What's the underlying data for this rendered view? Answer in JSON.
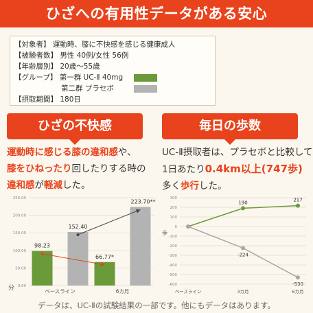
{
  "header": {
    "title": "ひざへの有用性データがある安心"
  },
  "info": {
    "subjects_label": "【対象者】",
    "subjects_value": "運動時、膝に不快感を感じる健康成人",
    "count_label": "【被験者数】",
    "count_value": "男性 40例/女性 56例",
    "age_label": "【年齢層別】",
    "age_value": "20歳～55歳",
    "group_label": "【グループ】",
    "group1": "第一群 UC-Ⅱ 40mg",
    "group2": "第二群 プラセボ",
    "period_label": "【摂取期間】",
    "period_value": "180日",
    "group1_color": "#6a9a3a",
    "group2_color": "#b3b3b3"
  },
  "left": {
    "badge": "ひざの不快感",
    "p1a": "運動時に感じる膝の違和感",
    "p1b": "や、",
    "p2a": "膝をひねったり",
    "p2b": "回したりする時の",
    "p3a": "違和感",
    "p3b": "が",
    "p3c": "軽減",
    "p3d": "した。"
  },
  "right": {
    "badge": "毎日の歩数",
    "p1": "UC-Ⅱ摂取者は、プラセボと比較して",
    "p2a": "1日あたり",
    "p2b": "0.4km以上(747歩)",
    "p3a": "多く",
    "p3b": "歩行",
    "p3c": "した。"
  },
  "footer": "データは、UC-Ⅱの試験結果の一部です。他にもデータはあります。",
  "chart_data": [
    {
      "type": "bar",
      "categories": [
        "ベースライン",
        "6カ月"
      ],
      "ylabel": "分",
      "ylim": [
        0,
        250
      ],
      "y_ticks": [
        "0.00",
        "50.00",
        "100.00",
        "150.00",
        "200.00",
        "250.00"
      ],
      "series": [
        {
          "values": [
            98.23,
            66.77
          ],
          "labels": [
            "98.23",
            "66.77*"
          ],
          "color": "#6a9a3a",
          "line_color": "#e8431c"
        },
        {
          "values": [
            152.4,
            223.7
          ],
          "labels": [
            "152.40",
            "223.70**"
          ],
          "color": "#b3b3b3",
          "line_color": "#444444"
        }
      ]
    },
    {
      "type": "line",
      "categories": [
        "ベースライン",
        "3カ月",
        "6カ月"
      ],
      "ylabel": "歩",
      "ylim": [
        -600,
        300
      ],
      "y_ticks": [
        "300",
        "200",
        "100",
        "0",
        "-100",
        "-200",
        "-300",
        "-400",
        "-500",
        "-600"
      ],
      "series": [
        {
          "values": [
            0,
            190,
            217
          ],
          "labels": [
            "",
            "190",
            "217"
          ],
          "color": "#6a9a3a"
        },
        {
          "values": [
            0,
            -224,
            -530
          ],
          "labels": [
            "",
            "-224",
            "-530"
          ],
          "color": "#a8a8a8"
        }
      ]
    }
  ]
}
